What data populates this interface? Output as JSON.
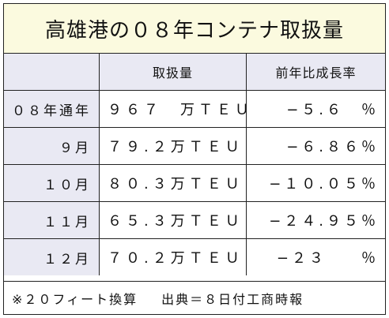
{
  "title": "高雄港の０８年コンテナ取扱量",
  "table": {
    "headers": [
      "",
      "取扱量",
      "前年比成長率"
    ],
    "rows": [
      {
        "label": "０８年通年",
        "volume": "９６７　万ＴＥＵ",
        "growth": "−５.６　％"
      },
      {
        "label": "９月",
        "volume": "７９.２万ＴＥＵ",
        "growth": "−６.８６％"
      },
      {
        "label": "１０月",
        "volume": "８０.３万ＴＥＵ",
        "growth": "−１０.０５％"
      },
      {
        "label": "１１月",
        "volume": "６５.３万ＴＥＵ",
        "growth": "−２４.９５％"
      },
      {
        "label": "１２月",
        "volume": "７０.２万ＴＥＵ",
        "growth": "−２３　　％"
      }
    ]
  },
  "footer": {
    "note": "※２０フィート換算",
    "source": "出典＝８日付工商時報"
  }
}
